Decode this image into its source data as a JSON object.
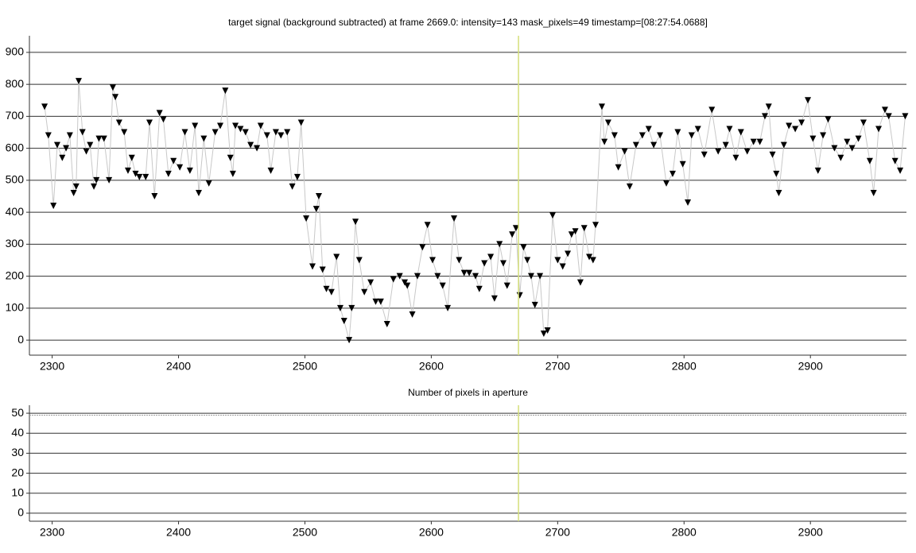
{
  "chart_data": [
    {
      "type": "line",
      "title": "target signal (background subtracted) at frame 2669.0: intensity=143 mask_pixels=49 timestamp=[08:27:54.0688]",
      "x": [
        2294,
        2297,
        2301,
        2304,
        2308,
        2311,
        2314,
        2317,
        2319,
        2321,
        2324,
        2327,
        2330,
        2333,
        2335,
        2337,
        2341,
        2345,
        2348,
        2350,
        2353,
        2357,
        2360,
        2363,
        2366,
        2369,
        2374,
        2377,
        2381,
        2385,
        2388,
        2392,
        2396,
        2401,
        2405,
        2409,
        2413,
        2416,
        2420,
        2424,
        2429,
        2433,
        2437,
        2441,
        2443,
        2445,
        2449,
        2453,
        2457,
        2462,
        2465,
        2470,
        2473,
        2477,
        2481,
        2486,
        2490,
        2494,
        2497,
        2501,
        2506,
        2509,
        2511,
        2514,
        2517,
        2521,
        2525,
        2528,
        2531,
        2535,
        2537,
        2540,
        2543,
        2547,
        2552,
        2556,
        2560,
        2565,
        2570,
        2575,
        2579,
        2581,
        2585,
        2589,
        2593,
        2597,
        2601,
        2605,
        2609,
        2613,
        2618,
        2622,
        2626,
        2630,
        2635,
        2638,
        2642,
        2647,
        2650,
        2654,
        2657,
        2660,
        2664,
        2667,
        2670,
        2673,
        2676,
        2679,
        2682,
        2686,
        2689,
        2692,
        2696,
        2700,
        2704,
        2708,
        2711,
        2714,
        2718,
        2721,
        2725,
        2728,
        2730,
        2735,
        2737,
        2740,
        2745,
        2748,
        2753,
        2757,
        2762,
        2767,
        2772,
        2776,
        2781,
        2786,
        2791,
        2795,
        2799,
        2803,
        2806,
        2811,
        2816,
        2822,
        2827,
        2833,
        2836,
        2841,
        2845,
        2850,
        2855,
        2860,
        2864,
        2867,
        2870,
        2873,
        2875,
        2879,
        2883,
        2888,
        2893,
        2898,
        2902,
        2906,
        2910,
        2914,
        2919,
        2924,
        2929,
        2933,
        2938,
        2942,
        2947,
        2950,
        2954,
        2959,
        2962,
        2967,
        2971,
        2975
      ],
      "series": [
        {
          "color": "#000000",
          "line_color": "#c8c8c8",
          "marker": "triangle-down",
          "values": [
            730,
            640,
            420,
            610,
            570,
            600,
            640,
            460,
            480,
            810,
            650,
            590,
            610,
            480,
            500,
            630,
            630,
            500,
            790,
            760,
            680,
            650,
            530,
            570,
            520,
            510,
            510,
            680,
            450,
            710,
            690,
            520,
            560,
            540,
            650,
            530,
            670,
            460,
            630,
            490,
            650,
            670,
            780,
            570,
            520,
            670,
            660,
            650,
            610,
            600,
            670,
            640,
            530,
            650,
            640,
            650,
            480,
            510,
            680,
            380,
            230,
            410,
            450,
            220,
            160,
            150,
            260,
            100,
            60,
            0,
            100,
            370,
            250,
            150,
            180,
            120,
            120,
            50,
            190,
            200,
            180,
            170,
            80,
            200,
            290,
            360,
            250,
            200,
            170,
            100,
            380,
            250,
            210,
            210,
            200,
            160,
            240,
            260,
            130,
            300,
            240,
            170,
            330,
            350,
            140,
            290,
            250,
            200,
            110,
            200,
            20,
            30,
            390,
            250,
            230,
            270,
            330,
            340,
            180,
            350,
            260,
            250,
            360,
            730,
            620,
            680,
            640,
            540,
            590,
            480,
            610,
            640,
            660,
            610,
            640,
            490,
            520,
            650,
            550,
            430,
            640,
            660,
            580,
            720,
            590,
            610,
            660,
            570,
            650,
            590,
            620,
            620,
            700,
            730,
            580,
            520,
            460,
            610,
            670,
            660,
            680,
            750,
            630,
            530,
            640,
            690,
            600,
            570,
            620,
            600,
            630,
            680,
            560,
            460,
            660,
            720,
            700,
            560,
            530,
            700
          ]
        }
      ],
      "xlim": [
        2282,
        2976
      ],
      "xticks": [
        2300,
        2400,
        2500,
        2600,
        2700,
        2800,
        2900
      ],
      "ylim": [
        -47,
        952
      ],
      "yticks": [
        0,
        100,
        200,
        300,
        400,
        500,
        600,
        700,
        800,
        900
      ],
      "grid": true,
      "cursor": 2669,
      "cursor_color": "#d4df7a"
    },
    {
      "type": "line",
      "title": "Number of pixels in aperture",
      "x": [
        2282,
        2976
      ],
      "series": [
        {
          "color": "#999999",
          "values": [
            49,
            49
          ]
        }
      ],
      "xlim": [
        2282,
        2976
      ],
      "xticks": [
        2300,
        2400,
        2500,
        2600,
        2700,
        2800,
        2900
      ],
      "ylim": [
        -4,
        54
      ],
      "yticks": [
        0,
        10,
        20,
        30,
        40,
        50
      ],
      "grid": true,
      "cursor": 2669,
      "cursor_color": "#d4df7a"
    }
  ]
}
